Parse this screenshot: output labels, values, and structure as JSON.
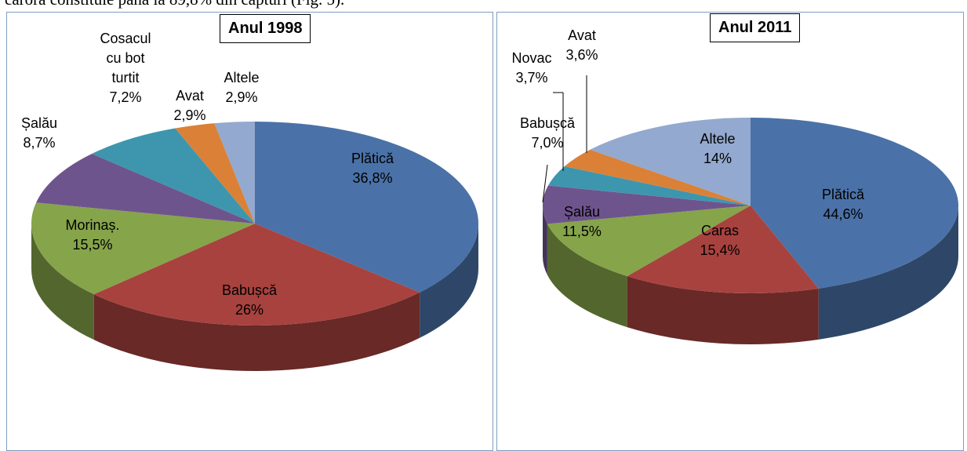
{
  "text_above": "cărora constituie până la 89,8% din capturi (Fig. 5).",
  "chart_data": [
    {
      "type": "pie",
      "title": "Anul 1998",
      "categories": [
        "Plătică",
        "Babușcă",
        "Morinaș.",
        "Șalău",
        "Cosacul cu bot turtit",
        "Avat",
        "Altele"
      ],
      "values": [
        36.8,
        26,
        15.5,
        8.7,
        7.2,
        2.9,
        2.9
      ],
      "value_labels": [
        "36,8%",
        "26%",
        "15,5%",
        "8,7%",
        "7,2%",
        "2,9%",
        "2,9%"
      ],
      "colors": [
        "#4a72a8",
        "#a8423f",
        "#86a44a",
        "#6e548d",
        "#3d96ae",
        "#da8137",
        "#93a9cf"
      ]
    },
    {
      "type": "pie",
      "title": "Anul 2011",
      "categories": [
        "Plătică",
        "Caras",
        "Șalău",
        "Babușcă",
        "Novac",
        "Avat",
        "Altele"
      ],
      "values": [
        44.6,
        15.4,
        11.5,
        7.0,
        3.7,
        3.6,
        14
      ],
      "value_labels": [
        "44,6%",
        "15,4%",
        "11,5%",
        "7,0%",
        "3,7%",
        "3,6%",
        "14%"
      ],
      "colors": [
        "#4a72a8",
        "#a8423f",
        "#86a44a",
        "#6e548d",
        "#3d96ae",
        "#da8137",
        "#93a9cf"
      ]
    }
  ]
}
